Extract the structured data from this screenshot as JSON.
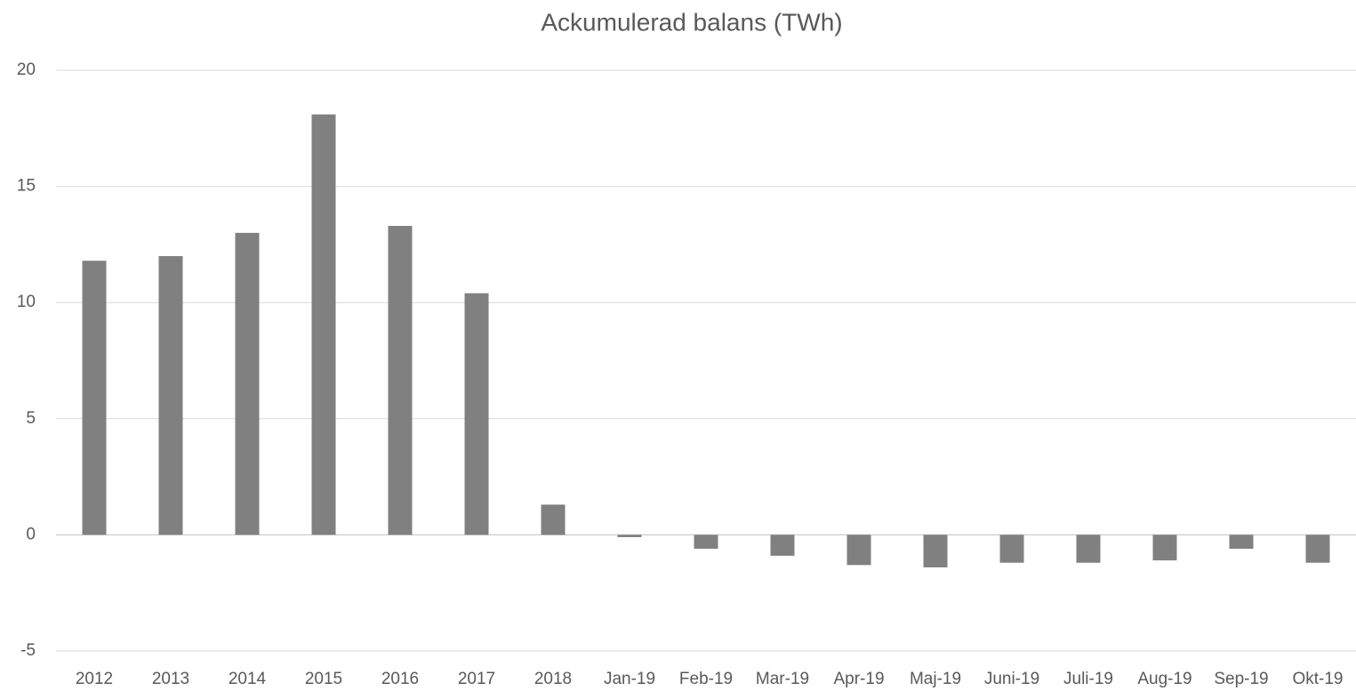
{
  "chart_data": {
    "type": "bar",
    "title": "Ackumulerad balans (TWh)",
    "categories": [
      "2012",
      "2013",
      "2014",
      "2015",
      "2016",
      "2017",
      "2018",
      "Jan-19",
      "Feb-19",
      "Mar-19",
      "Apr-19",
      "Maj-19",
      "Juni-19",
      "Juli-19",
      "Aug-19",
      "Sep-19",
      "Okt-19"
    ],
    "values": [
      11.8,
      12.0,
      13.0,
      18.1,
      13.3,
      10.4,
      1.3,
      -0.1,
      -0.6,
      -0.9,
      -1.3,
      -1.4,
      -1.2,
      -1.2,
      -1.1,
      -0.6,
      -1.2
    ],
    "color": "#808080",
    "ylim": [
      -5,
      20
    ],
    "yticks": [
      -5,
      0,
      5,
      10,
      15,
      20
    ],
    "grid": true
  }
}
